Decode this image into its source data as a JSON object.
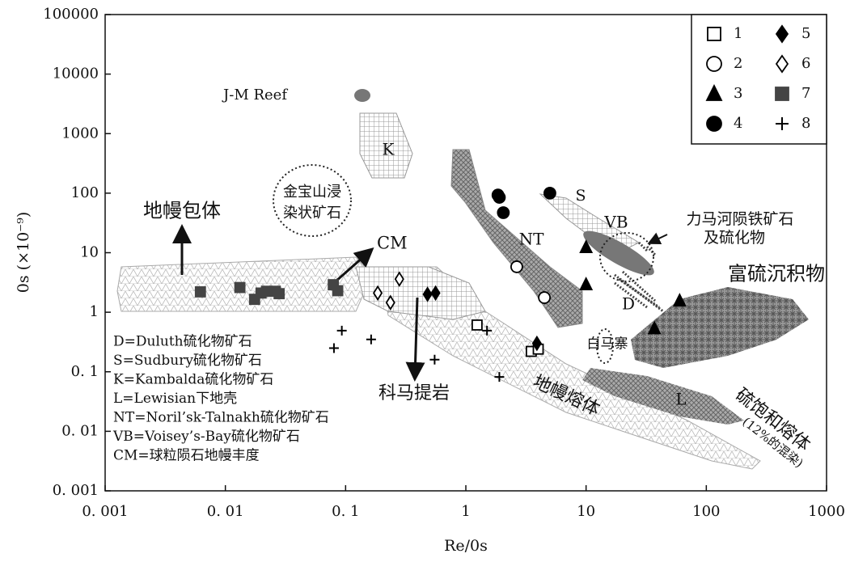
{
  "chart_data": {
    "type": "scatter",
    "x_label": "Re/0s",
    "y_label": "0s (×10⁻⁹)",
    "log_x": true,
    "log_y": true,
    "xlim": [
      0.001,
      1000
    ],
    "ylim": [
      0.001,
      100000
    ],
    "xticks": [
      {
        "value": 0.001,
        "label": "0. 001"
      },
      {
        "value": 0.01,
        "label": "0. 01"
      },
      {
        "value": 0.1,
        "label": "0. 1"
      },
      1,
      10,
      100,
      1000
    ],
    "yticks": [
      {
        "value": 0.001,
        "label": "0. 001"
      },
      {
        "value": 0.01,
        "label": "0. 01"
      },
      {
        "value": 0.1,
        "label": "0. 1"
      },
      1,
      10,
      100,
      1000,
      10000,
      100000
    ],
    "legend_position": "upper right",
    "series": [
      {
        "name": "1",
        "marker": "square-open",
        "color": "#000000",
        "x": [
          1.24,
          3.5,
          4.0
        ],
        "values": [
          0.61,
          0.22,
          0.24
        ]
      },
      {
        "name": "2",
        "marker": "circle-open",
        "color": "#000000",
        "x": [
          2.65,
          4.5
        ],
        "values": [
          5.8,
          1.76
        ]
      },
      {
        "name": "3",
        "marker": "triangle",
        "color": "#000000",
        "x": [
          10,
          10,
          37,
          60
        ],
        "values": [
          12.2,
          2.9,
          0.53,
          1.55
        ]
      },
      {
        "name": "4",
        "marker": "circle",
        "color": "#000000",
        "x": [
          1.85,
          1.9,
          2.05,
          5.0
        ],
        "values": [
          93,
          85,
          47,
          100
        ]
      },
      {
        "name": "5",
        "marker": "diamond",
        "color": "#000000",
        "x": [
          0.48,
          0.56,
          3.9
        ],
        "values": [
          2,
          2.1,
          0.3
        ]
      },
      {
        "name": "6",
        "marker": "diamond-open",
        "color": "#000000",
        "x": [
          0.185,
          0.236,
          0.28
        ],
        "values": [
          2.1,
          1.45,
          3.6
        ]
      },
      {
        "name": "7",
        "marker": "square",
        "color": "#444444",
        "x": [
          0.0062,
          0.0132,
          0.0175,
          0.0198,
          0.022,
          0.026,
          0.028,
          0.079,
          0.086
        ],
        "values": [
          2.2,
          2.6,
          1.65,
          2.1,
          2.25,
          2.25,
          2.05,
          2.9,
          2.3
        ]
      },
      {
        "name": "8",
        "marker": "plus",
        "color": "#000000",
        "x": [
          0.093,
          0.08,
          0.163,
          0.55,
          1.5,
          1.9
        ],
        "values": [
          0.49,
          0.25,
          0.35,
          0.16,
          0.49,
          0.082
        ]
      }
    ],
    "annotations": [
      "J-M Reef",
      "K",
      "金宝山浸",
      "染状矿石",
      "地幔包体",
      "CM",
      "S",
      "NT",
      "VB",
      "力马河陨铁矿石",
      "及硫化物",
      "富硫沉积物",
      "D",
      "白马寨",
      "L",
      "地幔熔体",
      "科马提岩",
      "硫饱和熔体",
      "(12%的混染)"
    ],
    "notes": [
      "D=Duluth硫化物矿石",
      "S=Sudbury硫化物矿石",
      "K=Kambalda硫化物矿石",
      "L=Lewisian下地壳",
      "NT=Noril’sk-Talnakh硫化物矿石",
      "VB=Voisey’s-Bay硫化物矿石",
      "CM=球粒陨石地幔丰度"
    ]
  }
}
